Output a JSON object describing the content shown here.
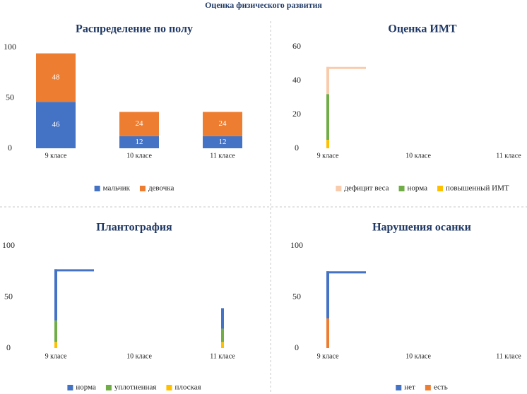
{
  "title": "Оценка физического развития",
  "chart_data": [
    {
      "type": "bar",
      "title": "Распределение по полу",
      "categories": [
        "9 класе",
        "10 класе",
        "11 класе"
      ],
      "series": [
        {
          "name": "мальчик",
          "color": "#4472c4",
          "values": [
            46,
            12,
            12
          ]
        },
        {
          "name": "девочка",
          "color": "#ed7d31",
          "values": [
            48,
            24,
            24
          ]
        }
      ],
      "ylim": [
        0,
        100
      ],
      "yticks": [
        0,
        50,
        100
      ],
      "value_labels_shown": true
    },
    {
      "type": "bar",
      "title": "Оценка ИМТ",
      "categories": [
        "9 класе",
        "10 класе",
        "11 класе"
      ],
      "series": [
        {
          "name": "дефицит веса",
          "color": "#f8cbad",
          "values": [
            16,
            null,
            null
          ]
        },
        {
          "name": "норма",
          "color": "#70ad47",
          "values": [
            27,
            null,
            null
          ]
        },
        {
          "name": "повышенный ИМТ",
          "color": "#ffc000",
          "values": [
            5,
            null,
            null
          ]
        }
      ],
      "ylim": [
        0,
        60
      ],
      "yticks": [
        0,
        20,
        40,
        60
      ],
      "stack_reversed": true
    },
    {
      "type": "bar",
      "title": "Плантография",
      "categories": [
        "9 класе",
        "10 класе",
        "11 класе"
      ],
      "series": [
        {
          "name": "норма",
          "color": "#4472c4",
          "values": [
            50,
            null,
            20
          ]
        },
        {
          "name": "уплотненная",
          "color": "#70ad47",
          "values": [
            21,
            null,
            13
          ]
        },
        {
          "name": "плоская",
          "color": "#ffc000",
          "values": [
            6,
            null,
            6
          ]
        }
      ],
      "ylim": [
        0,
        100
      ],
      "yticks": [
        0,
        50,
        100
      ],
      "stack_reversed": true
    },
    {
      "type": "bar",
      "title": "Нарушения осанки",
      "categories": [
        "9 класе",
        "10 класе",
        "11 класе"
      ],
      "series": [
        {
          "name": "нет",
          "color": "#4472c4",
          "values": [
            46,
            null,
            null
          ]
        },
        {
          "name": "есть",
          "color": "#ed7d31",
          "values": [
            29,
            null,
            null
          ]
        }
      ],
      "ylim": [
        0,
        100
      ],
      "yticks": [
        0,
        50,
        100
      ],
      "stack_reversed": true
    }
  ]
}
